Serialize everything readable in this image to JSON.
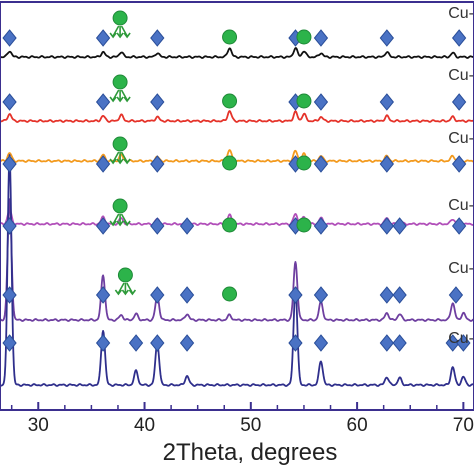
{
  "chart_data": {
    "type": "line",
    "title": "",
    "xlabel": "2Theta, degrees",
    "ylabel": "",
    "xlim": [
      26.4,
      71.0
    ],
    "xticks": [
      30,
      40,
      50,
      60,
      70
    ],
    "xtick_labels": [
      "30",
      "40",
      "50",
      "60",
      "70"
    ],
    "grid": false,
    "colors": {
      "diamond": "#4a72c4",
      "diamond_edge": "#2b4f9a",
      "circle": "#2cb34a",
      "arrow": "#2e9a3a",
      "frame": "#3b2f8f"
    },
    "series": [
      {
        "label": "Cu-",
        "color": "#111111",
        "peaks": [
          [
            27.3,
            0.06
          ],
          [
            36.1,
            0.05
          ],
          [
            37.8,
            0.05
          ],
          [
            41.2,
            0.04
          ],
          [
            48.0,
            0.09
          ],
          [
            54.2,
            0.09
          ],
          [
            55.0,
            0.06
          ],
          [
            56.6,
            0.04
          ],
          [
            62.8,
            0.05
          ],
          [
            69.0,
            0.04
          ]
        ],
        "diamonds": [
          27.3,
          36.1,
          41.2,
          54.2,
          56.6,
          62.8,
          69.6
        ],
        "circles": [
          48.0,
          55.0
        ],
        "arrows": [
          37.7
        ]
      },
      {
        "label": "Cu-",
        "color": "#e5332a",
        "peaks": [
          [
            27.3,
            0.07
          ],
          [
            36.1,
            0.05
          ],
          [
            37.8,
            0.06
          ],
          [
            41.2,
            0.04
          ],
          [
            48.0,
            0.1
          ],
          [
            54.2,
            0.09
          ],
          [
            55.0,
            0.07
          ],
          [
            56.6,
            0.04
          ],
          [
            62.8,
            0.05
          ],
          [
            69.0,
            0.04
          ]
        ],
        "diamonds": [
          27.3,
          36.1,
          41.2,
          54.2,
          56.6,
          62.8,
          69.6
        ],
        "circles": [
          48.0,
          55.0
        ],
        "arrows": [
          37.7
        ]
      },
      {
        "label": "Cu-",
        "color": "#f39a1e",
        "peaks": [
          [
            27.3,
            0.08
          ],
          [
            36.1,
            0.06
          ],
          [
            37.8,
            0.06
          ],
          [
            41.2,
            0.04
          ],
          [
            48.0,
            0.11
          ],
          [
            54.2,
            0.1
          ],
          [
            55.0,
            0.07
          ],
          [
            56.6,
            0.05
          ],
          [
            62.8,
            0.05
          ],
          [
            69.0,
            0.05
          ]
        ],
        "diamonds": [
          27.3,
          36.1,
          41.2,
          54.2,
          56.6,
          62.8,
          69.6
        ],
        "circles": [
          48.0,
          55.0
        ],
        "arrows": [
          37.7
        ]
      },
      {
        "label": "Cu-",
        "color": "#b14fb9",
        "peaks": [
          [
            27.3,
            0.14
          ],
          [
            36.1,
            0.07
          ],
          [
            37.8,
            0.06
          ],
          [
            41.2,
            0.05
          ],
          [
            44.0,
            0.03
          ],
          [
            48.0,
            0.09
          ],
          [
            54.2,
            0.1
          ],
          [
            55.0,
            0.07
          ],
          [
            56.6,
            0.06
          ],
          [
            62.8,
            0.06
          ],
          [
            64.0,
            0.04
          ],
          [
            69.0,
            0.05
          ]
        ],
        "diamonds": [
          27.3,
          36.1,
          41.2,
          44.0,
          54.2,
          56.6,
          62.8,
          64.0,
          69.6
        ],
        "circles": [
          48.0,
          55.0
        ],
        "arrows": [
          37.7
        ]
      },
      {
        "label": "Cu-",
        "color": "#6e3fa0",
        "peaks": [
          [
            27.3,
            1.2
          ],
          [
            36.1,
            0.45
          ],
          [
            37.8,
            0.05
          ],
          [
            39.2,
            0.06
          ],
          [
            41.2,
            0.24
          ],
          [
            44.0,
            0.06
          ],
          [
            48.0,
            0.05
          ],
          [
            54.2,
            0.58
          ],
          [
            56.6,
            0.18
          ],
          [
            62.8,
            0.07
          ],
          [
            64.0,
            0.06
          ],
          [
            69.0,
            0.17
          ],
          [
            70.0,
            0.07
          ]
        ],
        "diamonds": [
          27.3,
          36.1,
          41.2,
          44.0,
          54.2,
          56.6,
          62.8,
          64.0,
          69.3
        ],
        "circles": [
          48.0
        ],
        "arrows": [
          38.2
        ]
      },
      {
        "label": "Cu-",
        "color": "#2f2f8c",
        "peaks": [
          [
            27.3,
            2.3
          ],
          [
            36.1,
            0.55
          ],
          [
            39.2,
            0.14
          ],
          [
            41.2,
            0.42
          ],
          [
            44.0,
            0.09
          ],
          [
            54.2,
            0.96
          ],
          [
            56.6,
            0.24
          ],
          [
            62.8,
            0.08
          ],
          [
            64.0,
            0.07
          ],
          [
            69.0,
            0.18
          ],
          [
            70.0,
            0.08
          ]
        ],
        "diamonds": [
          27.3,
          36.1,
          39.2,
          41.2,
          44.0,
          54.2,
          56.6,
          62.8,
          64.0,
          69.0,
          70.0
        ],
        "circles": [],
        "arrows": []
      }
    ]
  }
}
